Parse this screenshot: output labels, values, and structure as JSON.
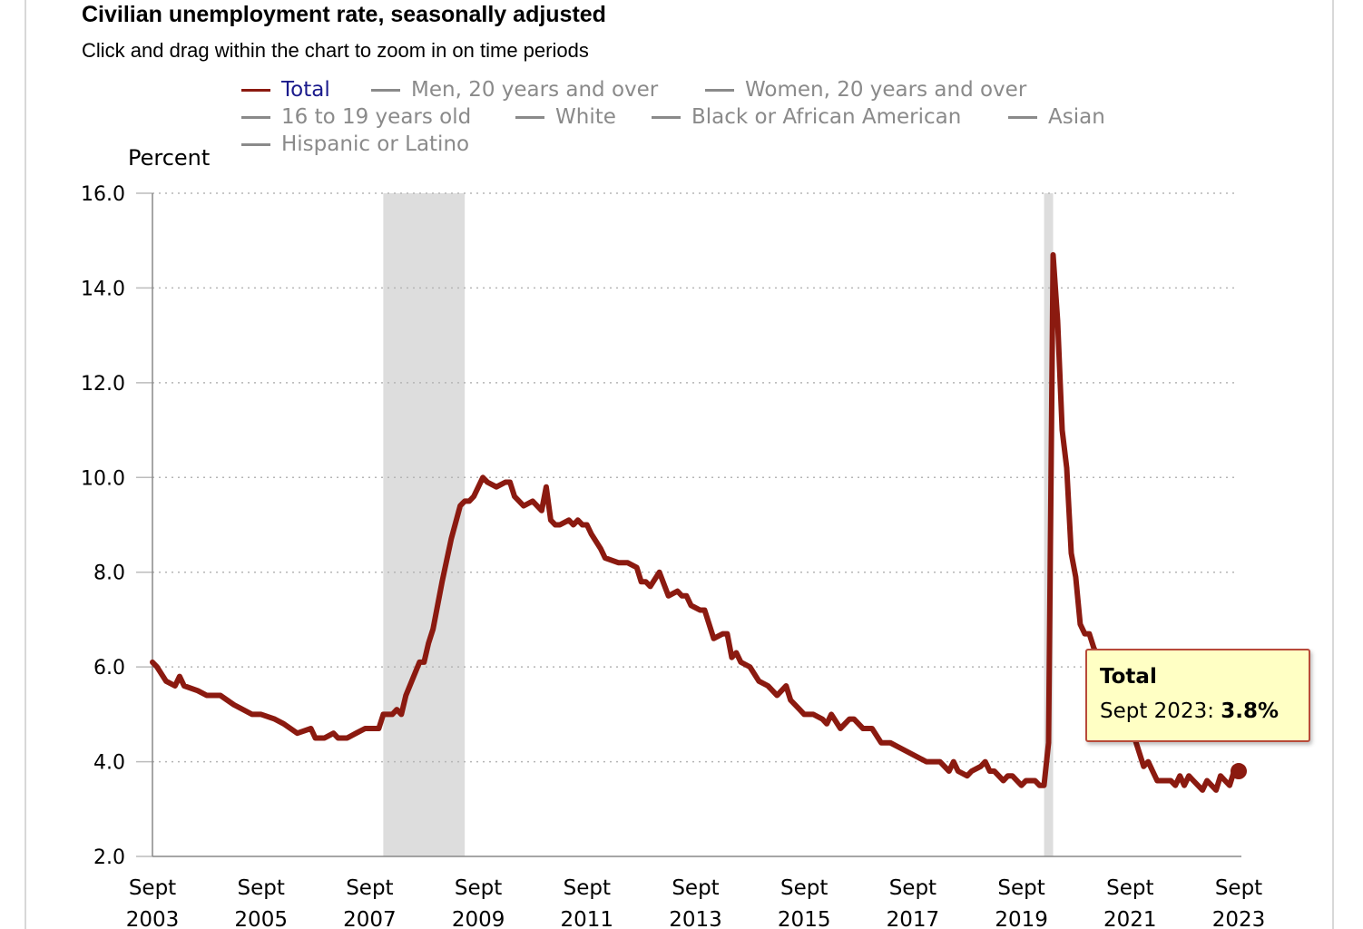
{
  "chart_data": {
    "type": "line",
    "title": "Civilian unemployment rate, seasonally adjusted",
    "subtitle": "Click and drag within the chart to zoom in on time periods",
    "ylabel": "Percent",
    "xlabel": "",
    "ylim": [
      2.0,
      16.0
    ],
    "yticks": [
      "16.0",
      "14.0",
      "12.0",
      "10.0",
      "8.0",
      "6.0",
      "4.0",
      "2.0"
    ],
    "xticks": [
      {
        "month": "Sept",
        "year": "2003"
      },
      {
        "month": "Sept",
        "year": "2005"
      },
      {
        "month": "Sept",
        "year": "2007"
      },
      {
        "month": "Sept",
        "year": "2009"
      },
      {
        "month": "Sept",
        "year": "2011"
      },
      {
        "month": "Sept",
        "year": "2013"
      },
      {
        "month": "Sept",
        "year": "2015"
      },
      {
        "month": "Sept",
        "year": "2017"
      },
      {
        "month": "Sept",
        "year": "2019"
      },
      {
        "month": "Sept",
        "year": "2021"
      },
      {
        "month": "Sept",
        "year": "2023"
      }
    ],
    "x_start": "2003-09",
    "x_end": "2023-09",
    "grid": "horizontal dotted",
    "legend_placement": "top",
    "legend": [
      {
        "name": "Total",
        "active": true
      },
      {
        "name": "Men, 20 years and over",
        "active": false
      },
      {
        "name": "Women, 20 years and over",
        "active": false
      },
      {
        "name": "16 to 19 years old",
        "active": false
      },
      {
        "name": "White",
        "active": false
      },
      {
        "name": "Black or African American",
        "active": false
      },
      {
        "name": "Asian",
        "active": false
      },
      {
        "name": "Hispanic or Latino",
        "active": false
      }
    ],
    "recessions": [
      {
        "start": "2007-12",
        "end": "2009-06"
      },
      {
        "start": "2020-02",
        "end": "2020-04"
      }
    ],
    "series": [
      {
        "name": "Total",
        "color": "#8b1a10",
        "points": [
          [
            "2003-09",
            6.1
          ],
          [
            "2003-10",
            6.0
          ],
          [
            "2003-12",
            5.7
          ],
          [
            "2004-02",
            5.6
          ],
          [
            "2004-03",
            5.8
          ],
          [
            "2004-04",
            5.6
          ],
          [
            "2004-07",
            5.5
          ],
          [
            "2004-09",
            5.4
          ],
          [
            "2004-11",
            5.4
          ],
          [
            "2004-12",
            5.4
          ],
          [
            "2005-03",
            5.2
          ],
          [
            "2005-05",
            5.1
          ],
          [
            "2005-07",
            5.0
          ],
          [
            "2005-09",
            5.0
          ],
          [
            "2005-12",
            4.9
          ],
          [
            "2006-02",
            4.8
          ],
          [
            "2006-05",
            4.6
          ],
          [
            "2006-08",
            4.7
          ],
          [
            "2006-09",
            4.5
          ],
          [
            "2006-11",
            4.5
          ],
          [
            "2007-01",
            4.6
          ],
          [
            "2007-02",
            4.5
          ],
          [
            "2007-04",
            4.5
          ],
          [
            "2007-06",
            4.6
          ],
          [
            "2007-08",
            4.7
          ],
          [
            "2007-11",
            4.7
          ],
          [
            "2007-12",
            5.0
          ],
          [
            "2008-02",
            5.0
          ],
          [
            "2008-03",
            5.1
          ],
          [
            "2008-04",
            5.0
          ],
          [
            "2008-05",
            5.4
          ],
          [
            "2008-08",
            6.1
          ],
          [
            "2008-09",
            6.1
          ],
          [
            "2008-10",
            6.5
          ],
          [
            "2008-11",
            6.8
          ],
          [
            "2009-01",
            7.8
          ],
          [
            "2009-03",
            8.7
          ],
          [
            "2009-05",
            9.4
          ],
          [
            "2009-06",
            9.5
          ],
          [
            "2009-07",
            9.5
          ],
          [
            "2009-08",
            9.6
          ],
          [
            "2009-10",
            10.0
          ],
          [
            "2009-11",
            9.9
          ],
          [
            "2010-01",
            9.8
          ],
          [
            "2010-03",
            9.9
          ],
          [
            "2010-04",
            9.9
          ],
          [
            "2010-05",
            9.6
          ],
          [
            "2010-07",
            9.4
          ],
          [
            "2010-09",
            9.5
          ],
          [
            "2010-11",
            9.3
          ],
          [
            "2010-12",
            9.8
          ],
          [
            "2011-01",
            9.1
          ],
          [
            "2011-02",
            9.0
          ],
          [
            "2011-03",
            9.0
          ],
          [
            "2011-05",
            9.1
          ],
          [
            "2011-06",
            9.0
          ],
          [
            "2011-07",
            9.1
          ],
          [
            "2011-08",
            9.0
          ],
          [
            "2011-09",
            9.0
          ],
          [
            "2011-10",
            8.8
          ],
          [
            "2011-12",
            8.5
          ],
          [
            "2012-01",
            8.3
          ],
          [
            "2012-04",
            8.2
          ],
          [
            "2012-06",
            8.2
          ],
          [
            "2012-08",
            8.1
          ],
          [
            "2012-09",
            7.8
          ],
          [
            "2012-10",
            7.8
          ],
          [
            "2012-11",
            7.7
          ],
          [
            "2013-01",
            8.0
          ],
          [
            "2013-03",
            7.5
          ],
          [
            "2013-05",
            7.6
          ],
          [
            "2013-06",
            7.5
          ],
          [
            "2013-07",
            7.5
          ],
          [
            "2013-08",
            7.3
          ],
          [
            "2013-10",
            7.2
          ],
          [
            "2013-11",
            7.2
          ],
          [
            "2014-01",
            6.6
          ],
          [
            "2014-03",
            6.7
          ],
          [
            "2014-04",
            6.7
          ],
          [
            "2014-05",
            6.2
          ],
          [
            "2014-06",
            6.3
          ],
          [
            "2014-07",
            6.1
          ],
          [
            "2014-09",
            6.0
          ],
          [
            "2014-11",
            5.7
          ],
          [
            "2015-01",
            5.6
          ],
          [
            "2015-03",
            5.4
          ],
          [
            "2015-05",
            5.6
          ],
          [
            "2015-06",
            5.3
          ],
          [
            "2015-08",
            5.1
          ],
          [
            "2015-09",
            5.0
          ],
          [
            "2015-11",
            5.0
          ],
          [
            "2016-01",
            4.9
          ],
          [
            "2016-02",
            4.8
          ],
          [
            "2016-03",
            5.0
          ],
          [
            "2016-05",
            4.7
          ],
          [
            "2016-07",
            4.9
          ],
          [
            "2016-08",
            4.9
          ],
          [
            "2016-10",
            4.7
          ],
          [
            "2016-12",
            4.7
          ],
          [
            "2017-02",
            4.4
          ],
          [
            "2017-04",
            4.4
          ],
          [
            "2017-06",
            4.3
          ],
          [
            "2017-08",
            4.2
          ],
          [
            "2017-10",
            4.1
          ],
          [
            "2017-12",
            4.0
          ],
          [
            "2018-01",
            4.0
          ],
          [
            "2018-03",
            4.0
          ],
          [
            "2018-05",
            3.8
          ],
          [
            "2018-06",
            4.0
          ],
          [
            "2018-07",
            3.8
          ],
          [
            "2018-09",
            3.7
          ],
          [
            "2018-10",
            3.8
          ],
          [
            "2018-12",
            3.9
          ],
          [
            "2019-01",
            4.0
          ],
          [
            "2019-02",
            3.8
          ],
          [
            "2019-03",
            3.8
          ],
          [
            "2019-05",
            3.6
          ],
          [
            "2019-06",
            3.7
          ],
          [
            "2019-07",
            3.7
          ],
          [
            "2019-09",
            3.5
          ],
          [
            "2019-10",
            3.6
          ],
          [
            "2019-12",
            3.6
          ],
          [
            "2020-01",
            3.5
          ],
          [
            "2020-02",
            3.5
          ],
          [
            "2020-03",
            4.4
          ],
          [
            "2020-04",
            14.7
          ],
          [
            "2020-05",
            13.3
          ],
          [
            "2020-06",
            11.0
          ],
          [
            "2020-07",
            10.2
          ],
          [
            "2020-08",
            8.4
          ],
          [
            "2020-09",
            7.9
          ],
          [
            "2020-10",
            6.9
          ],
          [
            "2020-11",
            6.7
          ],
          [
            "2020-12",
            6.7
          ],
          [
            "2021-01",
            6.4
          ],
          [
            "2021-02",
            6.2
          ],
          [
            "2021-03",
            6.0
          ],
          [
            "2021-04",
            6.1
          ],
          [
            "2021-05",
            5.8
          ],
          [
            "2021-06",
            5.9
          ],
          [
            "2021-07",
            5.4
          ],
          [
            "2021-08",
            5.1
          ],
          [
            "2021-09",
            4.7
          ],
          [
            "2021-10",
            4.5
          ],
          [
            "2021-11",
            4.2
          ],
          [
            "2021-12",
            3.9
          ],
          [
            "2022-01",
            4.0
          ],
          [
            "2022-02",
            3.8
          ],
          [
            "2022-03",
            3.6
          ],
          [
            "2022-06",
            3.6
          ],
          [
            "2022-07",
            3.5
          ],
          [
            "2022-08",
            3.7
          ],
          [
            "2022-09",
            3.5
          ],
          [
            "2022-10",
            3.7
          ],
          [
            "2022-11",
            3.6
          ],
          [
            "2022-12",
            3.5
          ],
          [
            "2023-01",
            3.4
          ],
          [
            "2023-02",
            3.6
          ],
          [
            "2023-03",
            3.5
          ],
          [
            "2023-04",
            3.4
          ],
          [
            "2023-05",
            3.7
          ],
          [
            "2023-06",
            3.6
          ],
          [
            "2023-07",
            3.5
          ],
          [
            "2023-08",
            3.8
          ],
          [
            "2023-09",
            3.8
          ]
        ]
      }
    ],
    "highlight": {
      "series": "Total",
      "date": "2023-09",
      "value": 3.8
    }
  },
  "tooltip": {
    "title": "Total",
    "label": "Sept 2023: ",
    "value": "3.8%"
  }
}
